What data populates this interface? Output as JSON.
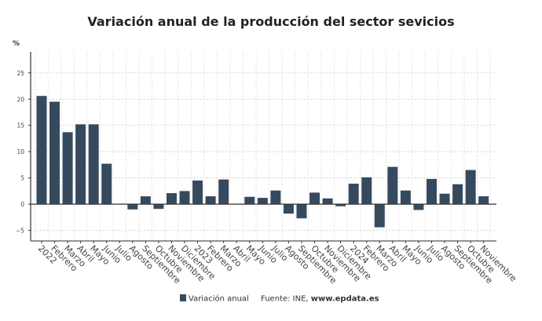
{
  "chart_data": {
    "type": "bar",
    "title": "Variación anual de la producción del sector sevicios",
    "ylabel": "%",
    "xlabel": "",
    "ylim": [
      -7,
      29
    ],
    "yticks": [
      -5,
      0,
      5,
      10,
      15,
      20,
      25
    ],
    "ytick_labels": [
      "−5",
      "0",
      "5",
      "10",
      "15",
      "20",
      "25"
    ],
    "grid": true,
    "legend_position": "bottom",
    "source_prefix": "Fuente: INE, ",
    "source_site": "www.epdata.es",
    "categories": [
      "2022",
      "Febrero",
      "Marzo",
      "Abril",
      "Mayo",
      "Junio",
      "Julio",
      "Agosto",
      "Septiembre",
      "Octubre",
      "Noviembre",
      "Diciembre",
      "2023",
      "Febrero",
      "Marzo",
      "Abril",
      "Mayo",
      "Junio",
      "Julio",
      "Agosto",
      "Septiembre",
      "Octubre",
      "Noviembre",
      "Diciembre",
      "2024",
      "Febrero",
      "Marzo",
      "Abril",
      "Mayo",
      "Junio",
      "Julio",
      "Agosto",
      "Septiembre",
      "Octubre",
      "Noviembre"
    ],
    "series": [
      {
        "name": "Variación anual",
        "color": "#364a5e",
        "values": [
          20.6,
          19.5,
          13.7,
          15.2,
          15.2,
          7.7,
          0.1,
          -1.0,
          1.5,
          -0.9,
          2.1,
          2.5,
          4.5,
          1.5,
          4.7,
          0.1,
          1.4,
          1.2,
          2.6,
          -1.8,
          -2.7,
          2.2,
          1.1,
          -0.4,
          3.9,
          5.1,
          -4.4,
          7.1,
          2.6,
          -1.1,
          4.8,
          2.0,
          3.8,
          6.5,
          1.5
        ]
      }
    ]
  }
}
